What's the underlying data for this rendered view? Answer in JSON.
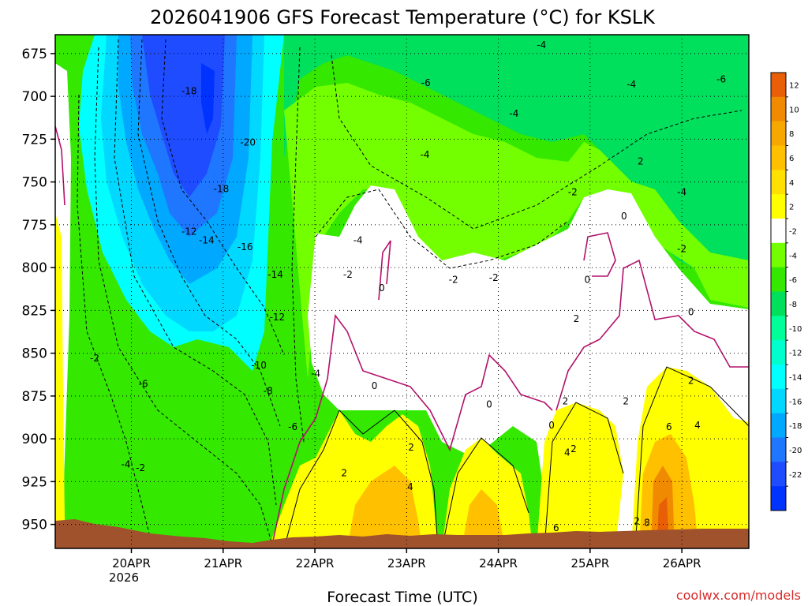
{
  "chart_data": {
    "type": "contour",
    "title": "2026041906 GFS Forecast Temperature (°C) for KSLK",
    "xlabel": "Forecast Time (UTC)",
    "ylabel": "",
    "y_ticks": [
      "675",
      "700",
      "725",
      "750",
      "775",
      "800",
      "825",
      "850",
      "875",
      "900",
      "925",
      "950"
    ],
    "x_ticks": [
      "20APR",
      "21APR",
      "22APR",
      "23APR",
      "24APR",
      "25APR",
      "26APR"
    ],
    "x_year_label": "2026",
    "colorbar": {
      "labels": [
        "12",
        "10",
        "8",
        "6",
        "4",
        "2",
        "-2",
        "-4",
        "-6",
        "-8",
        "-10",
        "-12",
        "-14",
        "-16",
        "-18",
        "-20",
        "-22"
      ],
      "colors": [
        "#e85f08",
        "#f08a00",
        "#f7a800",
        "#ffc000",
        "#ffe000",
        "#ffff00",
        "#ffffff",
        "#73ff00",
        "#34e800",
        "#00e05c",
        "#00ff99",
        "#00ffcc",
        "#00ffff",
        "#00d8ff",
        "#00a8ff",
        "#1f77ff",
        "#1f4cff",
        "#0033ff"
      ]
    },
    "contour_labels": [
      {
        "text": "-18",
        "t": 0.63,
        "p": 697
      },
      {
        "text": "-20",
        "t": 1.27,
        "p": 727
      },
      {
        "text": "-18",
        "t": 0.98,
        "p": 754
      },
      {
        "text": "-12",
        "t": 0.63,
        "p": 779
      },
      {
        "text": "-14",
        "t": 0.82,
        "p": 784
      },
      {
        "text": "-16",
        "t": 1.24,
        "p": 788
      },
      {
        "text": "-14",
        "t": 1.57,
        "p": 804
      },
      {
        "text": "-12",
        "t": 1.59,
        "p": 829
      },
      {
        "text": "-10",
        "t": 1.39,
        "p": 857
      },
      {
        "text": "-8",
        "t": 1.49,
        "p": 872
      },
      {
        "text": "-6",
        "t": 1.76,
        "p": 893
      },
      {
        "text": "-6",
        "t": 0.13,
        "p": 868
      },
      {
        "text": "-2",
        "t": -0.4,
        "p": 853
      },
      {
        "text": "-4",
        "t": -0.06,
        "p": 915
      },
      {
        "text": "-2",
        "t": 0.1,
        "p": 917
      },
      {
        "text": "-4",
        "t": 2.01,
        "p": 862
      },
      {
        "text": "-4",
        "t": 2.47,
        "p": 784
      },
      {
        "text": "-2",
        "t": 2.36,
        "p": 804
      },
      {
        "text": "0",
        "t": 2.73,
        "p": 812
      },
      {
        "text": "0",
        "t": 2.65,
        "p": 869
      },
      {
        "text": "-6",
        "t": 3.21,
        "p": 692
      },
      {
        "text": "-4",
        "t": 3.2,
        "p": 734
      },
      {
        "text": "-4",
        "t": 4.47,
        "p": 670
      },
      {
        "text": "-4",
        "t": 4.17,
        "p": 710
      },
      {
        "text": "-2",
        "t": 4.81,
        "p": 756
      },
      {
        "text": "-2",
        "t": 3.51,
        "p": 807
      },
      {
        "text": "-2",
        "t": 3.95,
        "p": 806
      },
      {
        "text": "0",
        "t": 3.9,
        "p": 880
      },
      {
        "text": "-4",
        "t": 5.45,
        "p": 693
      },
      {
        "text": "-6",
        "t": 6.43,
        "p": 690
      },
      {
        "text": "2",
        "t": 5.55,
        "p": 738
      },
      {
        "text": "0",
        "t": 5.37,
        "p": 770
      },
      {
        "text": "-4",
        "t": 6.0,
        "p": 756
      },
      {
        "text": "-2",
        "t": 6.0,
        "p": 789
      },
      {
        "text": "0",
        "t": 4.97,
        "p": 807
      },
      {
        "text": "2",
        "t": 4.85,
        "p": 830
      },
      {
        "text": "0",
        "t": 6.1,
        "p": 826
      },
      {
        "text": "0",
        "t": 4.58,
        "p": 892
      },
      {
        "text": "2",
        "t": 4.73,
        "p": 878
      },
      {
        "text": "2",
        "t": 5.39,
        "p": 878
      },
      {
        "text": "2",
        "t": 6.1,
        "p": 866
      },
      {
        "text": "4",
        "t": 6.17,
        "p": 892
      },
      {
        "text": "6",
        "t": 5.86,
        "p": 893
      },
      {
        "text": "4",
        "t": 4.75,
        "p": 908
      },
      {
        "text": "2",
        "t": 4.82,
        "p": 906
      },
      {
        "text": "2",
        "t": 3.05,
        "p": 905
      },
      {
        "text": "4",
        "t": 3.04,
        "p": 928
      },
      {
        "text": "2",
        "t": 2.32,
        "p": 920
      },
      {
        "text": "6",
        "t": 4.63,
        "p": 952
      },
      {
        "text": "2",
        "t": 5.51,
        "p": 948
      },
      {
        "text": "8",
        "t": 5.62,
        "p": 949
      }
    ]
  },
  "credit": "coolwx.com/models"
}
